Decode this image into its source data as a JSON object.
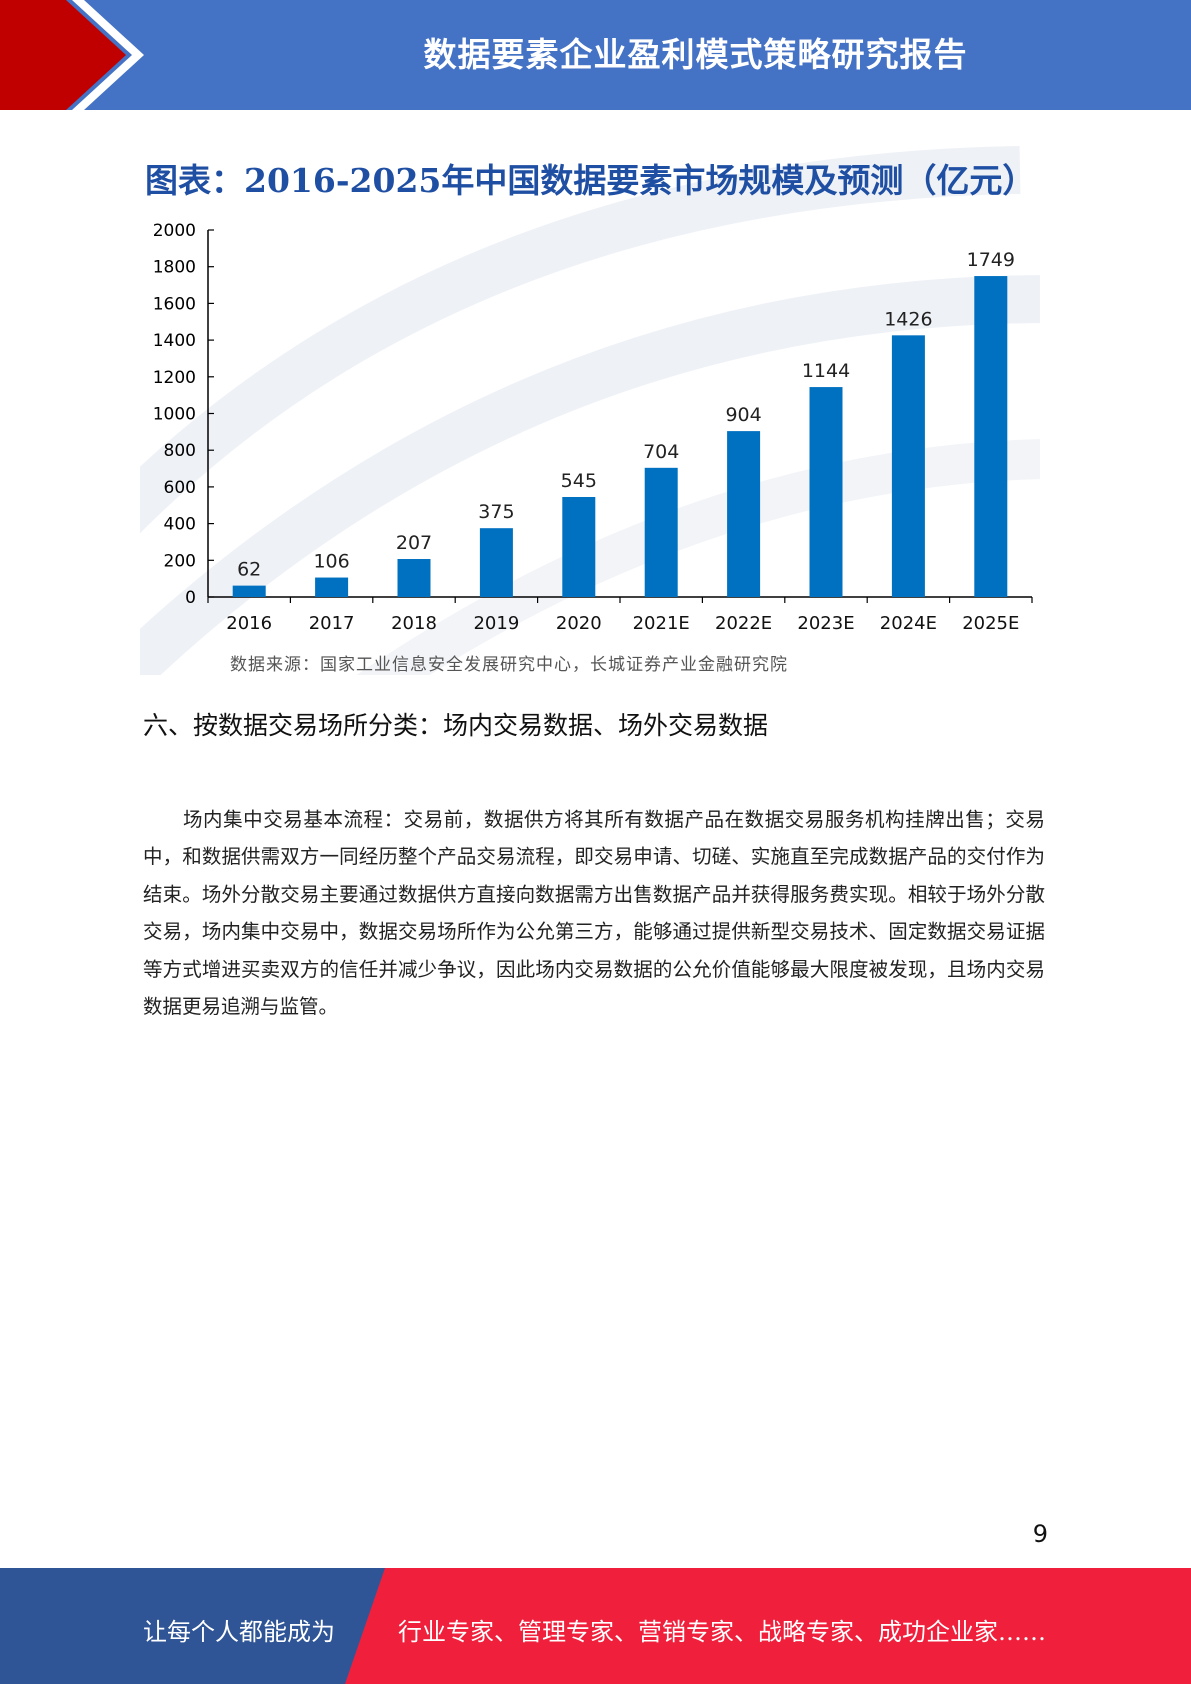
{
  "header": {
    "title": "数据要素企业盈利模式策略研究报告"
  },
  "colors": {
    "header_blue": "#4472c4",
    "accent_red": "#c00000",
    "bar_blue": "#0070c0",
    "footer_blue": "#2f5597",
    "footer_red": "#f0203c"
  },
  "chart_data": {
    "type": "bar",
    "title": "图表：2016-2025年中国数据要素市场规模及预测（亿元）",
    "categories": [
      "2016",
      "2017",
      "2018",
      "2019",
      "2020",
      "2021E",
      "2022E",
      "2023E",
      "2024E",
      "2025E"
    ],
    "values": [
      62,
      106,
      207,
      375,
      545,
      704,
      904,
      1144,
      1426,
      1749
    ],
    "yticks": [
      "0",
      "200",
      "400",
      "600",
      "800",
      "1000",
      "1200",
      "1400",
      "1600",
      "1800",
      "2000"
    ],
    "ylim": [
      0,
      2000
    ],
    "grid": false,
    "source": "数据来源：国家工业信息安全发展研究中心，长城证券产业金融研究院"
  },
  "section": {
    "heading": "六、按数据交易场所分类：场内交易数据、场外交易数据",
    "paragraph": "场内集中交易基本流程：交易前，数据供方将其所有数据产品在数据交易服务机构挂牌出售；交易中，和数据供需双方一同经历整个产品交易流程，即交易申请、切磋、实施直至完成数据产品的交付作为结束。场外分散交易主要通过数据供方直接向数据需方出售数据产品并获得服务费实现。相较于场外分散交易，场内集中交易中，数据交易场所作为公允第三方，能够通过提供新型交易技术、固定数据交易证据等方式增进买卖双方的信任并减少争议，因此场内交易数据的公允价值能够最大限度被发现，且场内交易数据更易追溯与监管。"
  },
  "page": {
    "number": "9"
  },
  "footer": {
    "left_text": "让每个人都能成为",
    "right_text": "行业专家、管理专家、营销专家、战略专家、成功企业家……"
  }
}
